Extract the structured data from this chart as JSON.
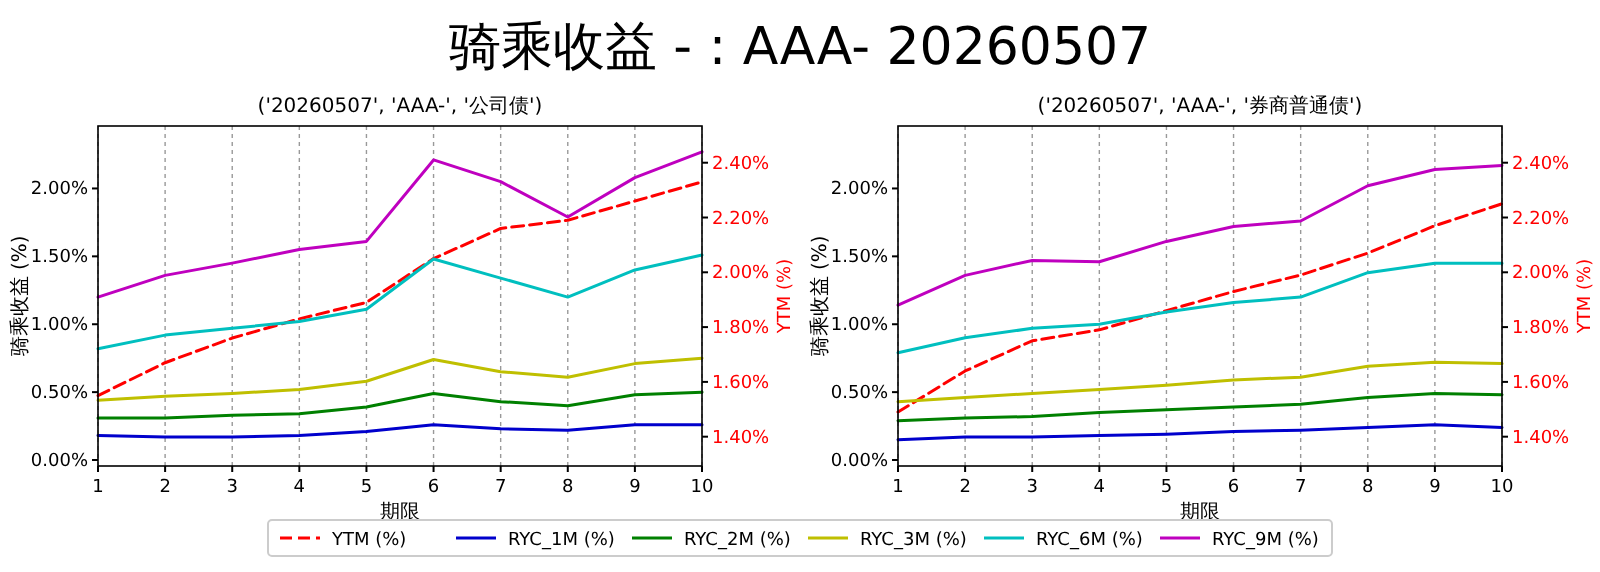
{
  "chart_data": [
    {
      "type": "line",
      "title": "骑乘收益 - : AAA- 20260507",
      "subtitle": "('20260507', 'AAA-', '公司债')",
      "xlabel": "期限",
      "ylabel": "骑乘收益 (%)",
      "y2label": "YTM (%)",
      "x": [
        1,
        2,
        3,
        4,
        5,
        6,
        7,
        8,
        9,
        10
      ],
      "xlim": [
        1,
        10
      ],
      "xticks": [
        1,
        2,
        3,
        4,
        5,
        6,
        7,
        8,
        9,
        10
      ],
      "ylim": [
        -0.044,
        2.46
      ],
      "yticks": [
        {
          "value": 0,
          "label": "0.00%"
        },
        {
          "value": 0.5,
          "label": "0.50%"
        },
        {
          "value": 1,
          "label": "1.00%"
        },
        {
          "value": 1.5,
          "label": "1.50%"
        },
        {
          "value": 2,
          "label": "2.00%"
        }
      ],
      "y2lim": [
        1.293,
        2.534
      ],
      "y2ticks": [
        {
          "value": 1.4,
          "label": "1.40%"
        },
        {
          "value": 1.6,
          "label": "1.60%"
        },
        {
          "value": 1.8,
          "label": "1.80%"
        },
        {
          "value": 2,
          "label": "2.00%"
        },
        {
          "value": 2.2,
          "label": "2.20%"
        },
        {
          "value": 2.4,
          "label": "2.40%"
        }
      ],
      "grid": "x",
      "legend": "bottom",
      "series": [
        {
          "name": "YTM (%)",
          "color": "#ff0000",
          "axis": "y2",
          "line_style": "dashed",
          "values": [
            1.55,
            1.67,
            1.76,
            1.83,
            1.89,
            2.05,
            2.16,
            2.19,
            2.26,
            2.33
          ]
        },
        {
          "name": "RYC_1M (%)",
          "color": "#0000cc",
          "values": [
            0.18,
            0.17,
            0.17,
            0.18,
            0.21,
            0.26,
            0.23,
            0.22,
            0.26,
            0.26
          ]
        },
        {
          "name": "RYC_2M (%)",
          "color": "#008000",
          "values": [
            0.31,
            0.31,
            0.33,
            0.34,
            0.39,
            0.49,
            0.43,
            0.4,
            0.48,
            0.5
          ]
        },
        {
          "name": "RYC_3M (%)",
          "color": "#bfbf00",
          "values": [
            0.44,
            0.47,
            0.49,
            0.52,
            0.58,
            0.74,
            0.65,
            0.61,
            0.71,
            0.75
          ]
        },
        {
          "name": "RYC_6M (%)",
          "color": "#00bfbf",
          "values": [
            0.82,
            0.92,
            0.97,
            1.02,
            1.11,
            1.48,
            1.34,
            1.2,
            1.4,
            1.51
          ]
        },
        {
          "name": "RYC_9M (%)",
          "color": "#bf00bf",
          "values": [
            1.2,
            1.36,
            1.45,
            1.55,
            1.61,
            2.21,
            2.05,
            1.79,
            2.08,
            2.27
          ]
        }
      ]
    },
    {
      "type": "line",
      "subtitle": "('20260507', 'AAA-', '券商普通债')",
      "xlabel": "期限",
      "ylabel": "骑乘收益 (%)",
      "y2label": "YTM (%)",
      "x": [
        1,
        2,
        3,
        4,
        5,
        6,
        7,
        8,
        9,
        10
      ],
      "xlim": [
        1,
        10
      ],
      "xticks": [
        1,
        2,
        3,
        4,
        5,
        6,
        7,
        8,
        9,
        10
      ],
      "ylim": [
        -0.044,
        2.46
      ],
      "yticks": [
        {
          "value": 0,
          "label": "0.00%"
        },
        {
          "value": 0.5,
          "label": "0.50%"
        },
        {
          "value": 1,
          "label": "1.00%"
        },
        {
          "value": 1.5,
          "label": "1.50%"
        },
        {
          "value": 2,
          "label": "2.00%"
        }
      ],
      "y2lim": [
        1.293,
        2.534
      ],
      "y2ticks": [
        {
          "value": 1.4,
          "label": "1.40%"
        },
        {
          "value": 1.6,
          "label": "1.60%"
        },
        {
          "value": 1.8,
          "label": "1.80%"
        },
        {
          "value": 2,
          "label": "2.00%"
        },
        {
          "value": 2.2,
          "label": "2.20%"
        },
        {
          "value": 2.4,
          "label": "2.40%"
        }
      ],
      "grid": "x",
      "series": [
        {
          "color": "#ff0000",
          "axis": "y2",
          "line_style": "dashed",
          "values": [
            1.49,
            1.64,
            1.75,
            1.79,
            1.86,
            1.93,
            1.99,
            2.07,
            2.17,
            2.25
          ]
        },
        {
          "color": "#0000cc",
          "values": [
            0.15,
            0.17,
            0.17,
            0.18,
            0.19,
            0.21,
            0.22,
            0.24,
            0.26,
            0.24
          ]
        },
        {
          "color": "#008000",
          "values": [
            0.29,
            0.31,
            0.32,
            0.35,
            0.37,
            0.39,
            0.41,
            0.46,
            0.49,
            0.48
          ]
        },
        {
          "color": "#bfbf00",
          "values": [
            0.43,
            0.46,
            0.49,
            0.52,
            0.55,
            0.59,
            0.61,
            0.69,
            0.72,
            0.71
          ]
        },
        {
          "color": "#00bfbf",
          "values": [
            0.79,
            0.9,
            0.97,
            1.0,
            1.09,
            1.16,
            1.2,
            1.38,
            1.45,
            1.45
          ]
        },
        {
          "color": "#bf00bf",
          "values": [
            1.14,
            1.36,
            1.47,
            1.46,
            1.61,
            1.72,
            1.76,
            2.02,
            2.14,
            2.17
          ]
        }
      ]
    }
  ]
}
